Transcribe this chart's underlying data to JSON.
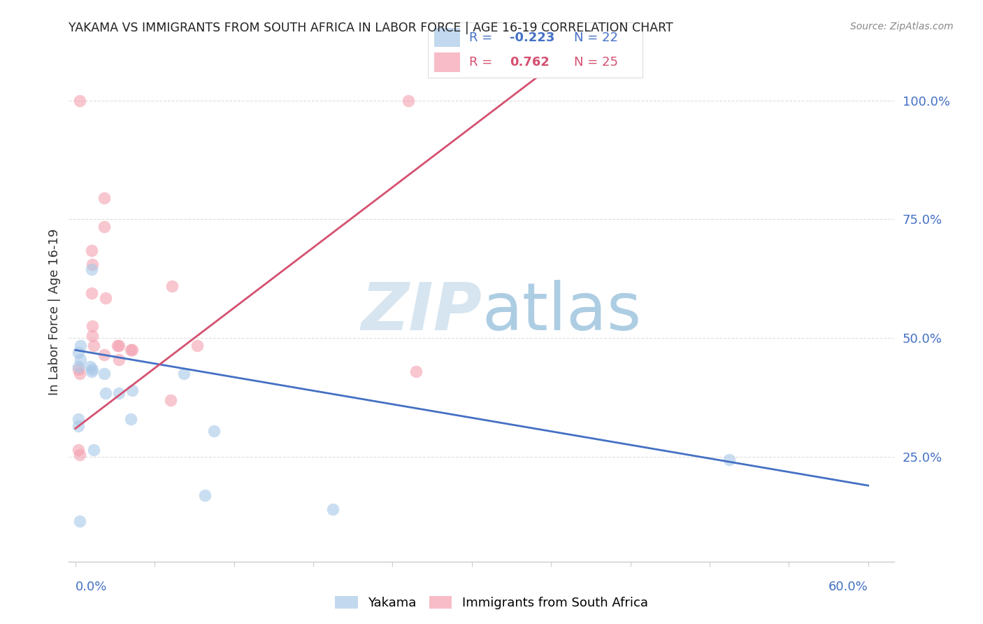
{
  "title": "YAKAMA VS IMMIGRANTS FROM SOUTH AFRICA IN LABOR FORCE | AGE 16-19 CORRELATION CHART",
  "source": "Source: ZipAtlas.com",
  "ylabel": "In Labor Force | Age 16-19",
  "xlim": [
    -0.005,
    0.62
  ],
  "ylim": [
    0.03,
    1.08
  ],
  "yticks": [
    0.25,
    0.5,
    0.75,
    1.0
  ],
  "ytick_labels": [
    "25.0%",
    "50.0%",
    "75.0%",
    "100.0%"
  ],
  "watermark_zip": "ZIP",
  "watermark_atlas": "atlas",
  "blue_color": "#a8c8e8",
  "pink_color": "#f4a0b0",
  "blue_line_color": "#4470c4",
  "pink_line_color": "#d45070",
  "yakama_points_x": [
    0.002,
    0.004,
    0.002,
    0.004,
    0.002,
    0.002,
    0.003,
    0.012,
    0.011,
    0.013,
    0.012,
    0.014,
    0.022,
    0.023,
    0.033,
    0.043,
    0.042,
    0.082,
    0.105,
    0.098,
    0.195,
    0.495
  ],
  "yakama_points_y": [
    0.44,
    0.455,
    0.47,
    0.485,
    0.315,
    0.33,
    0.115,
    0.645,
    0.44,
    0.435,
    0.43,
    0.265,
    0.425,
    0.385,
    0.385,
    0.39,
    0.33,
    0.425,
    0.305,
    0.17,
    0.14,
    0.245
  ],
  "sa_points_x": [
    0.002,
    0.003,
    0.002,
    0.003,
    0.003,
    0.012,
    0.013,
    0.012,
    0.013,
    0.013,
    0.014,
    0.022,
    0.022,
    0.023,
    0.022,
    0.032,
    0.033,
    0.033,
    0.042,
    0.043,
    0.072,
    0.073,
    0.092,
    0.252,
    0.258
  ],
  "sa_points_y": [
    0.435,
    0.425,
    0.265,
    0.255,
    1.0,
    0.685,
    0.655,
    0.595,
    0.525,
    0.505,
    0.485,
    0.795,
    0.735,
    0.585,
    0.465,
    0.485,
    0.485,
    0.455,
    0.475,
    0.475,
    0.37,
    0.61,
    0.485,
    1.0,
    0.43
  ],
  "blue_line_x": [
    0.0,
    0.6
  ],
  "blue_line_y": [
    0.475,
    0.19
  ],
  "pink_line_x": [
    0.0,
    0.35
  ],
  "pink_line_y": [
    0.31,
    1.05
  ],
  "legend_r1_color": "#4470c4",
  "legend_r2_color": "#d45070",
  "grid_color": "#dddddd",
  "spine_color": "#cccccc",
  "title_color": "#222222",
  "source_color": "#888888",
  "axis_label_color": "#333333",
  "tick_label_color": "#4470c4"
}
